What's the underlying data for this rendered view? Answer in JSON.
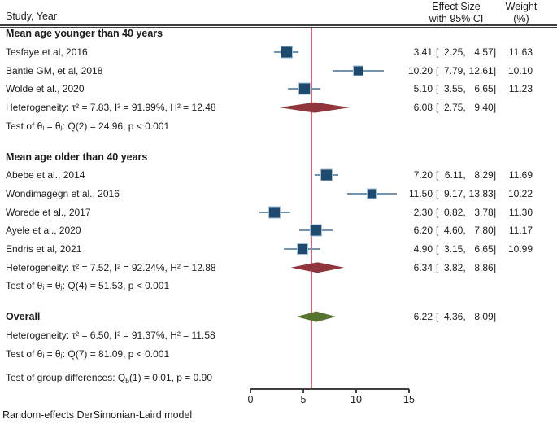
{
  "header": {
    "study_col": "Study, Year",
    "effect_col_line1": "Effect Size",
    "effect_col_line2": "with 95% CI",
    "weight_col_line1": "Weight",
    "weight_col_line2": "(%)"
  },
  "footer": "Random-effects DerSimonian-Laird model",
  "colors": {
    "marker": "#1d4a6e",
    "marker_border": "#a3c1d9",
    "ci_line": "#7593ab",
    "maroon_diamond": "#90353b",
    "green_diamond": "#55752f",
    "ref_line": "#d86175",
    "axis": "#3f3f3f"
  },
  "chart_data": {
    "type": "forest",
    "title": "",
    "xlabel": "",
    "x_ticks": [
      0,
      5,
      10,
      15
    ],
    "x_range": [
      0,
      15
    ],
    "ref_line_x": 5.8,
    "legend": "none",
    "rows": [
      {
        "type": "group",
        "label": "Mean age younger than 40 years"
      },
      {
        "type": "study",
        "label": "Tesfaye et al, 2016",
        "est": 3.41,
        "lo": 2.25,
        "hi": 4.57,
        "weight": 11.63
      },
      {
        "type": "study",
        "label": "Bantie GM, et al, 2018",
        "est": 10.2,
        "lo": 7.79,
        "hi": 12.61,
        "weight": 10.1
      },
      {
        "type": "study",
        "label": "Wolde et al., 2020",
        "est": 5.1,
        "lo": 3.55,
        "hi": 6.65,
        "weight": 11.23
      },
      {
        "type": "summary",
        "label": "Heterogeneity: τ² = 7.83, I² = 91.99%, H² = 12.48",
        "est": 6.08,
        "lo": 2.75,
        "hi": 9.4,
        "diamond": "maroon"
      },
      {
        "type": "text",
        "label": "Test of θᵢ = θⱼ: Q(2) = 24.96, p < 0.001"
      },
      {
        "type": "gap",
        "size": 15
      },
      {
        "type": "group",
        "label": "Mean age older than 40 years"
      },
      {
        "type": "study",
        "label": "Abebe et al., 2014",
        "est": 7.2,
        "lo": 6.11,
        "hi": 8.29,
        "weight": 11.69
      },
      {
        "type": "study",
        "label": "Wondimagegn et al., 2016",
        "est": 11.5,
        "lo": 9.17,
        "hi": 13.83,
        "weight": 10.22
      },
      {
        "type": "study",
        "label": "Worede et al., 2017",
        "est": 2.3,
        "lo": 0.82,
        "hi": 3.78,
        "weight": 11.3
      },
      {
        "type": "study",
        "label": "Ayele et al., 2020",
        "est": 6.2,
        "lo": 4.6,
        "hi": 7.8,
        "weight": 11.17
      },
      {
        "type": "study",
        "label": "Endris et al, 2021",
        "est": 4.9,
        "lo": 3.15,
        "hi": 6.65,
        "weight": 10.99
      },
      {
        "type": "summary",
        "label": "Heterogeneity: τ² = 7.52, I² = 92.24%, H² = 12.88",
        "est": 6.34,
        "lo": 3.82,
        "hi": 8.86,
        "diamond": "maroon"
      },
      {
        "type": "text",
        "label": "Test of θᵢ = θⱼ: Q(4) = 51.53, p < 0.001"
      },
      {
        "type": "gap",
        "size": 15
      },
      {
        "type": "summary",
        "label": "Overall",
        "bold": true,
        "est": 6.22,
        "lo": 4.36,
        "hi": 8.09,
        "diamond": "green"
      },
      {
        "type": "text",
        "label": "Heterogeneity: τ² = 6.50, I² = 91.37%, H² = 11.58"
      },
      {
        "type": "text",
        "label": "Test of θᵢ = θⱼ: Q(7) = 81.09, p < 0.001"
      },
      {
        "type": "gap",
        "size": 8
      },
      {
        "type": "text",
        "parts": [
          {
            "t": "Test of group differences: Q"
          },
          {
            "t": "b",
            "sub": true
          },
          {
            "t": "(1) = 0.01, p = 0.90"
          }
        ]
      }
    ]
  }
}
